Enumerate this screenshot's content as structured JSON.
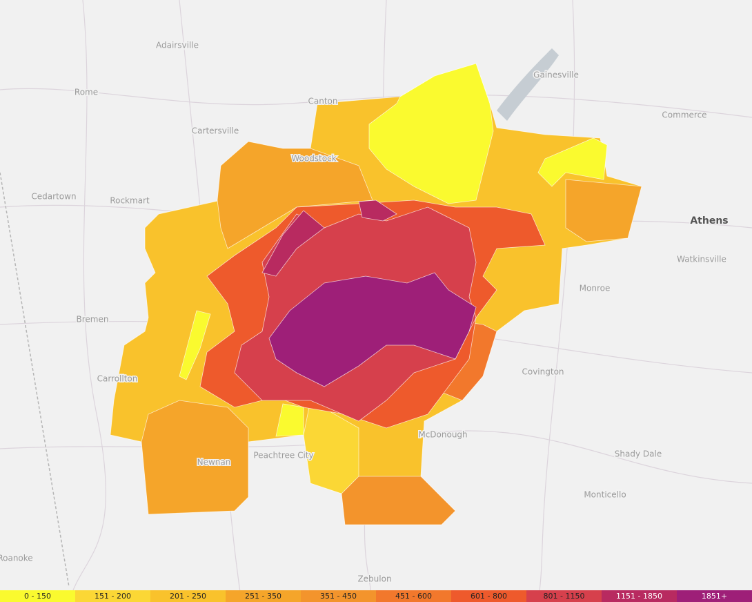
{
  "places": [
    {
      "name": "Adairsville"
    },
    {
      "name": "Rome"
    },
    {
      "name": "Canton"
    },
    {
      "name": "Cartersville"
    },
    {
      "name": "Gainesville"
    },
    {
      "name": "Commerce"
    },
    {
      "name": "Cedartown"
    },
    {
      "name": "Rockmart"
    },
    {
      "name": "Woodstock"
    },
    {
      "name": "Athens"
    },
    {
      "name": "Watkinsville"
    },
    {
      "name": "Monroe"
    },
    {
      "name": "Bremen"
    },
    {
      "name": "Carrollton"
    },
    {
      "name": "Covington"
    },
    {
      "name": "McDonough"
    },
    {
      "name": "Shady Dale"
    },
    {
      "name": "Peachtree City"
    },
    {
      "name": "Newnan"
    },
    {
      "name": "Monticello"
    },
    {
      "name": "Zebulon"
    },
    {
      "name": "Roanoke"
    }
  ],
  "legend": {
    "items": [
      {
        "label": "0 - 150",
        "color": "#fafa2f"
      },
      {
        "label": "151 - 200",
        "color": "#fbd735"
      },
      {
        "label": "201 - 250",
        "color": "#f9c22c"
      },
      {
        "label": "251 - 350",
        "color": "#f5a52a"
      },
      {
        "label": "351 - 450",
        "color": "#f3942c"
      },
      {
        "label": "451 - 600",
        "color": "#f2782c"
      },
      {
        "label": "601 - 800",
        "color": "#ee5a2c"
      },
      {
        "label": "801 - 1150",
        "color": "#d6404c"
      },
      {
        "label": "1151 - 1850",
        "color": "#b82a60"
      },
      {
        "label": "1851+",
        "color": "#9e1f78"
      }
    ]
  }
}
